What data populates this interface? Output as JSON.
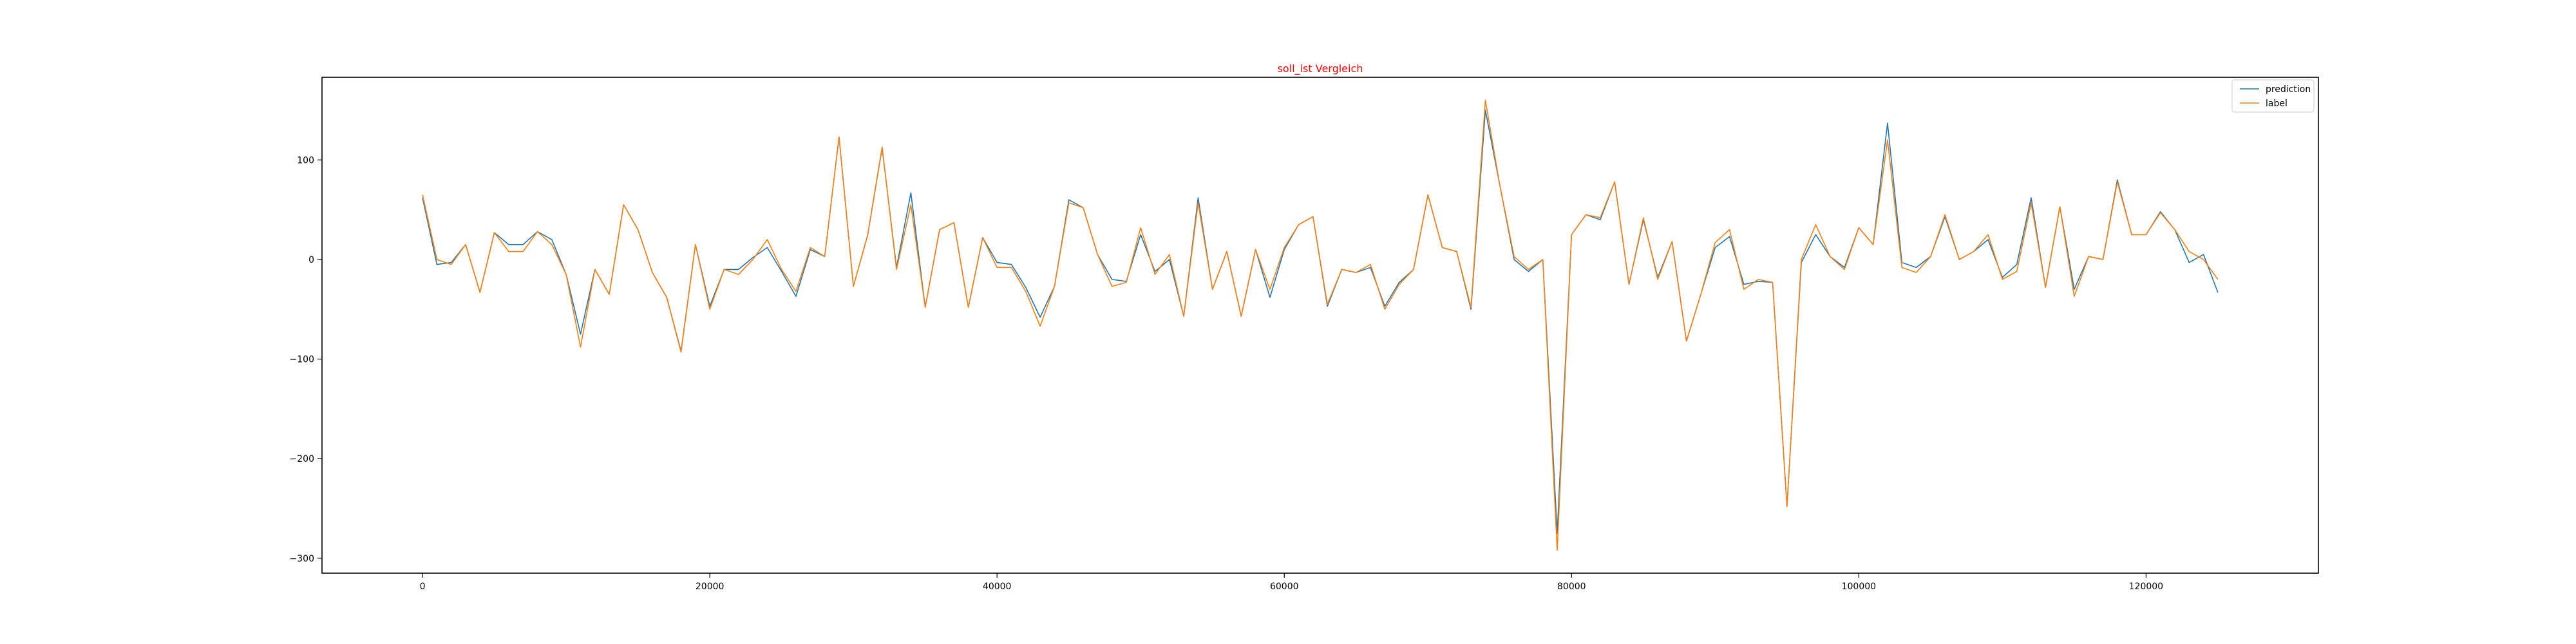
{
  "chart_data": {
    "type": "line",
    "title": "soll_ist Vergleich",
    "title_color": "#ff0000",
    "xlabel": "",
    "ylabel": "",
    "xlim": [
      -7000,
      132000
    ],
    "ylim": [
      -315,
      183
    ],
    "x_ticks": [
      0,
      20000,
      40000,
      60000,
      80000,
      100000,
      120000
    ],
    "x_tick_labels": [
      "0",
      "20000",
      "40000",
      "60000",
      "80000",
      "100000",
      "120000"
    ],
    "y_ticks": [
      100,
      0,
      -100,
      -200,
      -300
    ],
    "y_tick_labels": [
      "100",
      "0",
      "−100",
      "−200",
      "−300"
    ],
    "grid": false,
    "legend_position": "top-right",
    "x": [
      0,
      1000,
      2000,
      3000,
      4000,
      5000,
      6000,
      7000,
      8000,
      9000,
      10000,
      11000,
      12000,
      13000,
      14000,
      15000,
      16000,
      17000,
      18000,
      19000,
      20000,
      21000,
      22000,
      23000,
      24000,
      25000,
      26000,
      27000,
      28000,
      29000,
      30000,
      31000,
      32000,
      33000,
      34000,
      35000,
      36000,
      37000,
      38000,
      39000,
      40000,
      41000,
      42000,
      43000,
      44000,
      45000,
      46000,
      47000,
      48000,
      49000,
      50000,
      51000,
      52000,
      53000,
      54000,
      55000,
      56000,
      57000,
      58000,
      59000,
      60000,
      61000,
      62000,
      63000,
      64000,
      65000,
      66000,
      67000,
      68000,
      69000,
      70000,
      71000,
      72000,
      73000,
      74000,
      75000,
      76000,
      77000,
      78000,
      79000,
      80000,
      81000,
      82000,
      83000,
      84000,
      85000,
      86000,
      87000,
      88000,
      89000,
      90000,
      91000,
      92000,
      93000,
      94000,
      95000,
      96000,
      97000,
      98000,
      99000,
      100000,
      101000,
      102000,
      103000,
      104000,
      105000,
      106000,
      107000,
      108000,
      109000,
      110000,
      111000,
      112000,
      113000,
      114000,
      115000,
      116000,
      117000,
      118000,
      119000,
      120000,
      121000,
      122000,
      123000,
      124000,
      125000
    ],
    "series": [
      {
        "name": "prediction",
        "color": "#1f77b4",
        "values": [
          62,
          -5,
          -3,
          15,
          -33,
          27,
          15,
          15,
          28,
          20,
          -15,
          -75,
          -10,
          -35,
          55,
          30,
          -13,
          -38,
          -92,
          15,
          -47,
          -10,
          -10,
          2,
          12,
          -12,
          -37,
          10,
          3,
          123,
          -27,
          25,
          112,
          -8,
          67,
          -48,
          30,
          37,
          -48,
          22,
          -3,
          -5,
          -28,
          -58,
          -27,
          60,
          52,
          5,
          -20,
          -22,
          25,
          -12,
          0,
          -57,
          62,
          -30,
          8,
          -57,
          10,
          -38,
          10,
          35,
          43,
          -47,
          -10,
          -13,
          -8,
          -47,
          -23,
          -10,
          65,
          12,
          8,
          -50,
          150,
          75,
          0,
          -12,
          0,
          -275,
          25,
          45,
          40,
          78,
          -25,
          40,
          -18,
          18,
          -82,
          -35,
          12,
          23,
          -25,
          -22,
          -23,
          -248,
          -3,
          25,
          3,
          -8,
          32,
          15,
          137,
          -3,
          -8,
          3,
          43,
          0,
          8,
          20,
          -18,
          -5,
          62,
          -28,
          53,
          -30,
          3,
          0,
          80,
          25,
          25,
          48,
          30,
          -3,
          5,
          -33
        ]
      },
      {
        "name": "label",
        "color": "#ff7f0e",
        "values": [
          65,
          0,
          -5,
          15,
          -33,
          27,
          8,
          8,
          28,
          15,
          -15,
          -88,
          -10,
          -35,
          55,
          30,
          -13,
          -38,
          -93,
          15,
          -50,
          -10,
          -15,
          0,
          20,
          -10,
          -32,
          12,
          3,
          123,
          -27,
          25,
          113,
          -10,
          55,
          -48,
          30,
          37,
          -48,
          22,
          -8,
          -8,
          -32,
          -67,
          -27,
          57,
          52,
          5,
          -27,
          -23,
          32,
          -15,
          5,
          -57,
          57,
          -30,
          8,
          -57,
          10,
          -30,
          12,
          35,
          43,
          -45,
          -10,
          -13,
          -5,
          -50,
          -25,
          -10,
          65,
          12,
          8,
          -48,
          160,
          75,
          3,
          -10,
          0,
          -292,
          25,
          45,
          42,
          78,
          -25,
          42,
          -20,
          18,
          -82,
          -35,
          17,
          30,
          -30,
          -20,
          -23,
          -248,
          0,
          35,
          3,
          -10,
          32,
          15,
          120,
          -8,
          -13,
          3,
          45,
          0,
          8,
          25,
          -20,
          -12,
          57,
          -28,
          53,
          -37,
          3,
          0,
          78,
          25,
          25,
          47,
          30,
          8,
          0,
          -20
        ]
      }
    ]
  }
}
